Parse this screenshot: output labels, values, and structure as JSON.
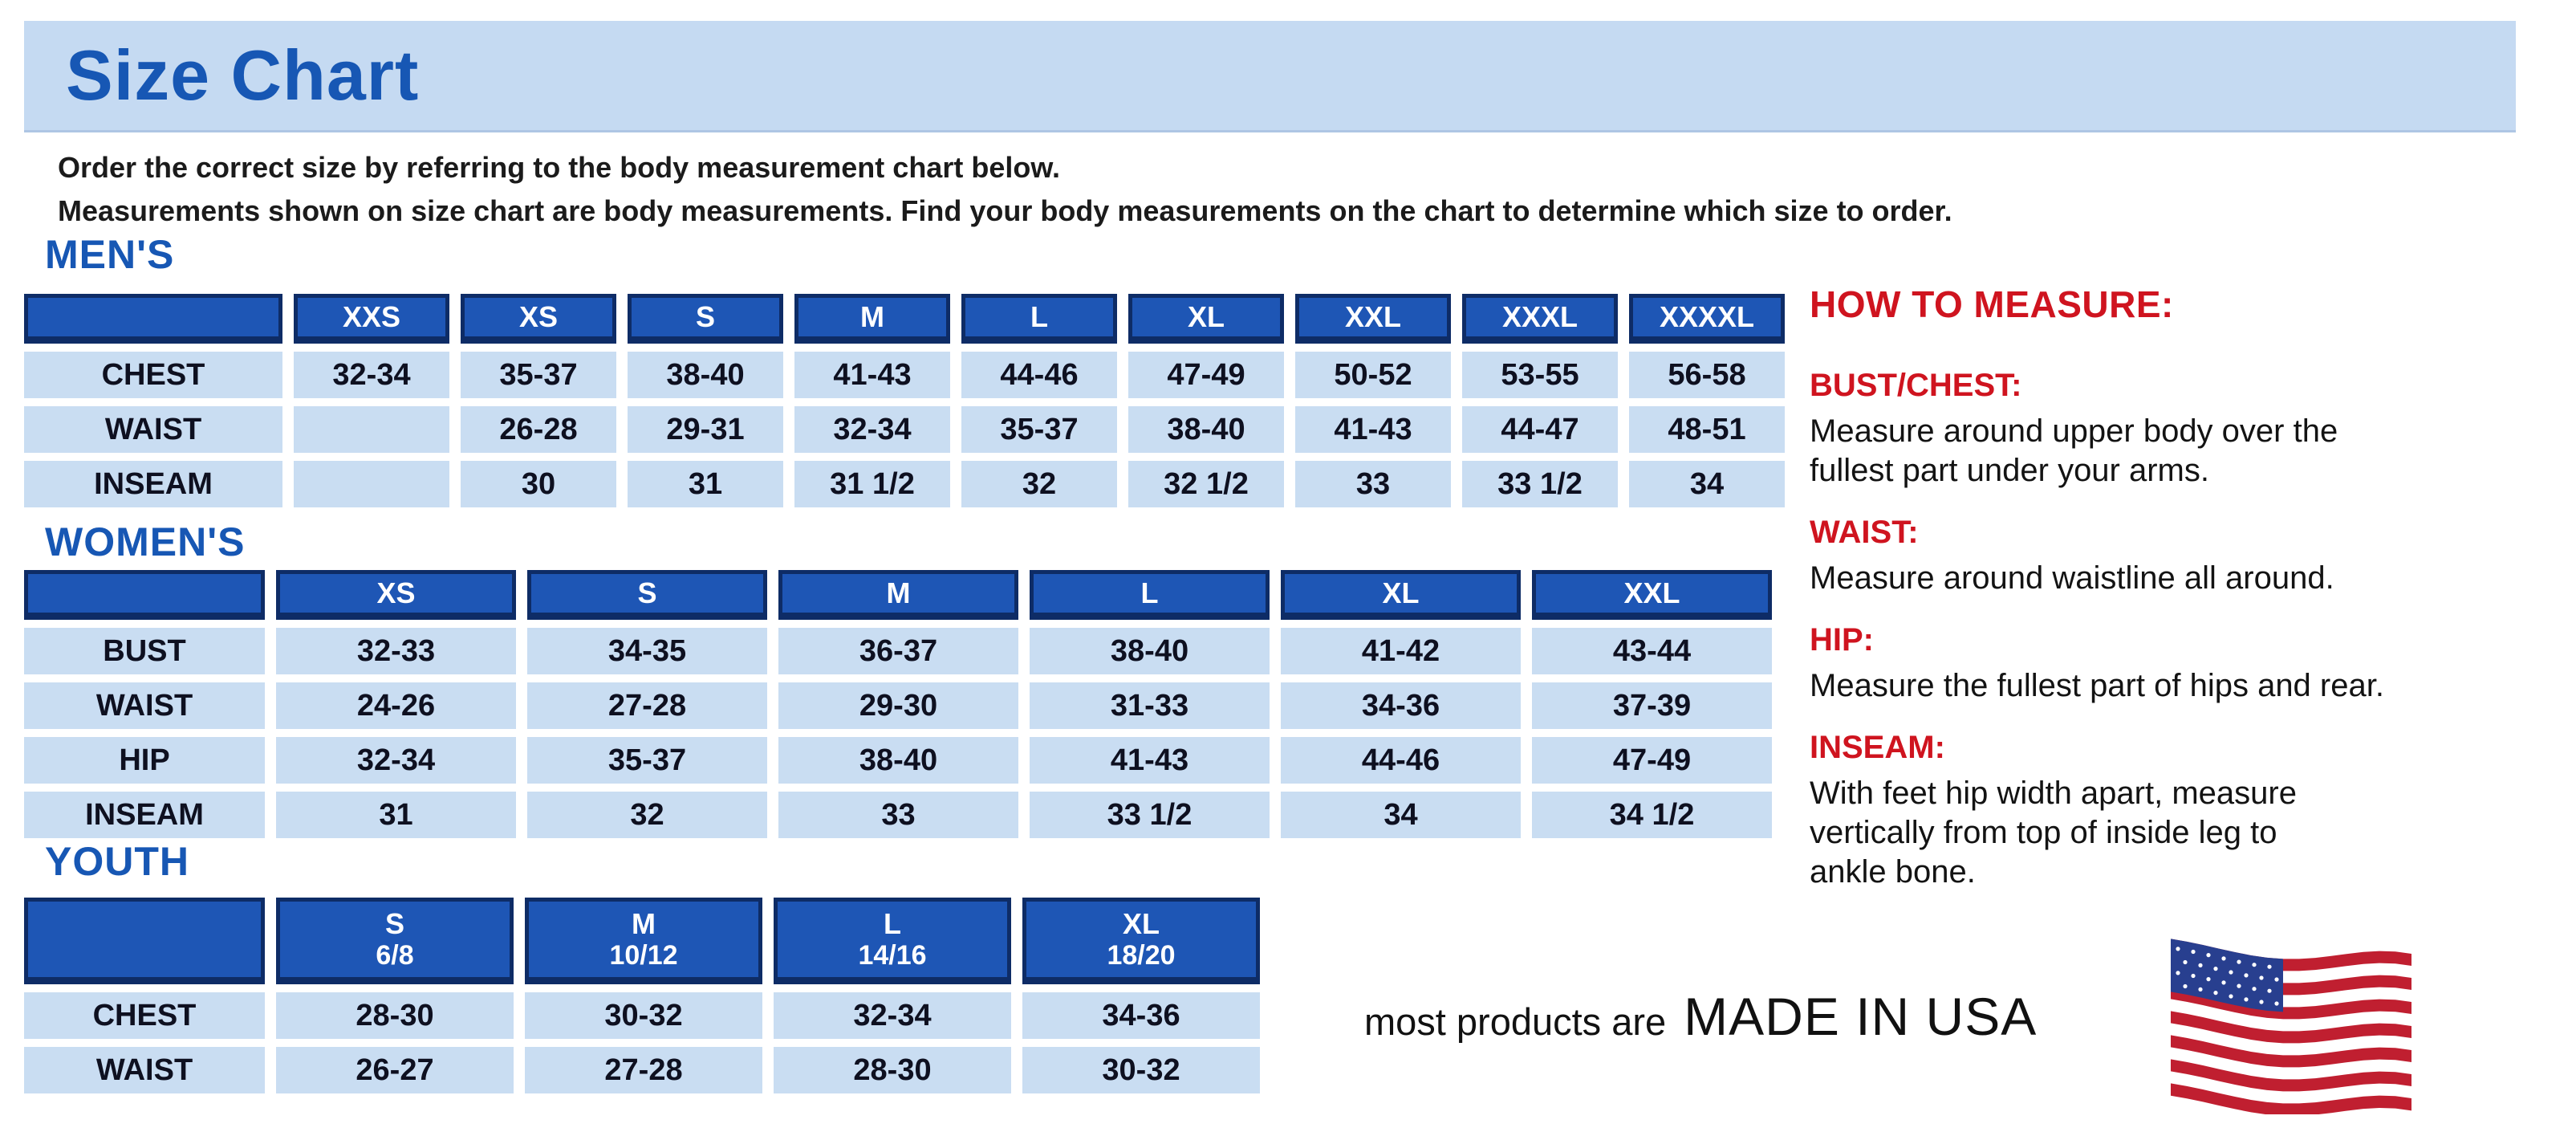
{
  "title": "Size Chart",
  "intro": {
    "line1": "Order the correct size by referring to the body measurement chart below.",
    "line2": "Measurements shown on size chart are body measurements.  Find your body measurements on the chart to determine which size to order."
  },
  "sections": [
    {
      "heading": "MEN'S",
      "headers": [
        {
          "label": ""
        },
        {
          "label": "XXS"
        },
        {
          "label": "XS"
        },
        {
          "label": "S"
        },
        {
          "label": "M"
        },
        {
          "label": "L"
        },
        {
          "label": "XL"
        },
        {
          "label": "XXL"
        },
        {
          "label": "XXXL"
        },
        {
          "label": "XXXXL"
        }
      ],
      "rows": [
        {
          "label": "CHEST",
          "values": [
            "32-34",
            "35-37",
            "38-40",
            "41-43",
            "44-46",
            "47-49",
            "50-52",
            "53-55",
            "56-58"
          ]
        },
        {
          "label": "WAIST",
          "values": [
            "",
            "26-28",
            "29-31",
            "32-34",
            "35-37",
            "38-40",
            "41-43",
            "44-47",
            "48-51"
          ]
        },
        {
          "label": "INSEAM",
          "values": [
            "",
            "30",
            "31",
            "31 1/2",
            "32",
            "32 1/2",
            "33",
            "33 1/2",
            "34"
          ]
        }
      ]
    },
    {
      "heading": "WOMEN'S",
      "headers": [
        {
          "label": ""
        },
        {
          "label": "XS"
        },
        {
          "label": "S"
        },
        {
          "label": "M"
        },
        {
          "label": "L"
        },
        {
          "label": "XL"
        },
        {
          "label": "XXL"
        }
      ],
      "rows": [
        {
          "label": "BUST",
          "values": [
            "32-33",
            "34-35",
            "36-37",
            "38-40",
            "41-42",
            "43-44"
          ]
        },
        {
          "label": "WAIST",
          "values": [
            "24-26",
            "27-28",
            "29-30",
            "31-33",
            "34-36",
            "37-39"
          ]
        },
        {
          "label": "HIP",
          "values": [
            "32-34",
            "35-37",
            "38-40",
            "41-43",
            "44-46",
            "47-49"
          ]
        },
        {
          "label": "INSEAM",
          "values": [
            "31",
            "32",
            "33",
            "33 1/2",
            "34",
            "34 1/2"
          ]
        }
      ]
    },
    {
      "heading": "YOUTH",
      "headers": [
        {
          "label": ""
        },
        {
          "label": "S",
          "sub": "6/8"
        },
        {
          "label": "M",
          "sub": "10/12"
        },
        {
          "label": "L",
          "sub": "14/16"
        },
        {
          "label": "XL",
          "sub": "18/20"
        }
      ],
      "rows": [
        {
          "label": "CHEST",
          "values": [
            "28-30",
            "30-32",
            "32-34",
            "34-36"
          ]
        },
        {
          "label": "WAIST",
          "values": [
            "26-27",
            "27-28",
            "28-30",
            "30-32"
          ]
        }
      ]
    }
  ],
  "how_to_measure": {
    "title": "HOW TO MEASURE:",
    "items": [
      {
        "label": "BUST/CHEST:",
        "lines": [
          "Measure around upper body over the",
          "fullest part under your arms."
        ]
      },
      {
        "label": "WAIST:",
        "lines": [
          "Measure around waistline all around."
        ]
      },
      {
        "label": "HIP:",
        "lines": [
          "Measure the fullest part of hips and rear."
        ]
      },
      {
        "label": "INSEAM:",
        "lines": [
          "With feet hip width apart, measure",
          "vertically from top of inside leg to",
          "ankle bone."
        ]
      }
    ]
  },
  "footer": {
    "prefix": "most products are",
    "emphasis": "MADE IN USA"
  },
  "flag": {
    "name": "usa-flag",
    "colors": {
      "red": "#c01f30",
      "white": "#ffffff",
      "blue": "#283f8f"
    }
  },
  "colors": {
    "title_bar_bg": "#c5daf2",
    "heading_blue": "#1757b4",
    "table_header_bg": "#1e56b5",
    "table_header_border": "#0e2c66",
    "table_cell_bg": "#c9ddf2",
    "accent_red": "#cf141f"
  }
}
